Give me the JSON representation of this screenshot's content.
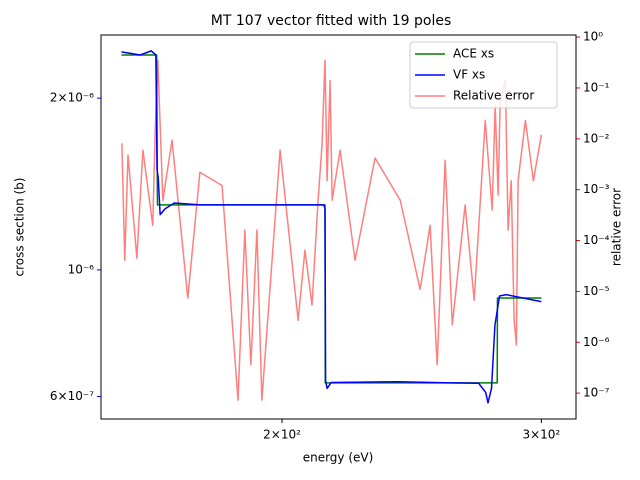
{
  "chart_data": {
    "type": "line",
    "title": "MT 107 vector fitted with 19 poles",
    "xlabel": "energy (eV)",
    "ylabel": "cross section (b)",
    "y2label": "relative error",
    "xscale": "log",
    "yscale": "log",
    "y2scale": "log",
    "y_color": "blue",
    "y2_color": "red",
    "legend": "upper right",
    "xlim": [
      150.7,
      316.7
    ],
    "ylim": [
      5.48e-07,
      2.58e-06
    ],
    "y2lim": [
      3.1e-08,
      1.1
    ],
    "xticks": [
      {
        "value": 200,
        "label": "2×10²"
      },
      {
        "value": 300,
        "label": "3×10²"
      }
    ],
    "yticks": [
      {
        "value": 6e-07,
        "label": "6×10⁻⁷"
      },
      {
        "value": 1e-06,
        "label": "10⁻⁶"
      },
      {
        "value": 2e-06,
        "label": "2×10⁻⁶"
      }
    ],
    "y2ticks": [
      {
        "value": 1e-07,
        "label": "10⁻⁷"
      },
      {
        "value": 1e-06,
        "label": "10⁻⁶"
      },
      {
        "value": 1e-05,
        "label": "10⁻⁵"
      },
      {
        "value": 0.0001,
        "label": "10⁻⁴"
      },
      {
        "value": 0.001,
        "label": "10⁻³"
      },
      {
        "value": 0.01,
        "label": "10⁻²"
      },
      {
        "value": 0.1,
        "label": "10⁻¹"
      },
      {
        "value": 1,
        "label": "10⁰"
      }
    ],
    "series": [
      {
        "name": "ACE xs",
        "color": "green",
        "width": 1.5,
        "x": [
          155.6,
          164.4,
          164.6,
          213.9,
          214.0,
          280.0,
          280.1,
          300.0
        ],
        "values": [
          2.38e-06,
          2.38e-06,
          1.3e-06,
          1.3e-06,
          6.34e-07,
          6.34e-07,
          8.93e-07,
          8.93e-07
        ]
      },
      {
        "name": "VF xs",
        "color": "blue",
        "width": 1.5,
        "x": [
          155.6,
          160.2,
          163.0,
          164.2,
          164.5,
          164.8,
          165.3,
          166.6,
          169.0,
          176.0,
          213.5,
          213.9,
          214.1,
          214.6,
          216.0,
          240.0,
          260.0,
          272.0,
          275.0,
          276.0,
          277.5,
          279.0,
          281.0,
          284.0,
          290.0,
          300.0
        ],
        "values": [
          2.41e-06,
          2.38e-06,
          2.42e-06,
          2.38e-06,
          1.5e-06,
          1.45e-06,
          1.25e-06,
          1.28e-06,
          1.31e-06,
          1.3e-06,
          1.3e-06,
          1.28e-06,
          6.4e-07,
          6.2e-07,
          6.35e-07,
          6.37e-07,
          6.34e-07,
          6.33e-07,
          6.1e-07,
          5.85e-07,
          6.2e-07,
          8e-07,
          9e-07,
          9.05e-07,
          8.95e-07,
          8.8e-07
        ]
      },
      {
        "name": "Relative error",
        "color": "red",
        "opacity": 0.5,
        "width": 1.5,
        "axis": "y2",
        "x": [
          155.7,
          156.4,
          157.2,
          159.4,
          160.9,
          163.4,
          164.0,
          164.7,
          166.0,
          168.4,
          172.6,
          175.9,
          182.1,
          186.7,
          188.7,
          190.5,
          192.3,
          193.8,
          199.4,
          205.1,
          207.3,
          209.6,
          211.6,
          212.9,
          213.9,
          214.6,
          215.6,
          216.3,
          219.0,
          224.2,
          231.3,
          240.6,
          248.2,
          252.1,
          254.9,
          258.1,
          261.0,
          266.3,
          270.1,
          274.8,
          277.8,
          279.1,
          280.4,
          281.3,
          283.6,
          284.8,
          286.2,
          287.5,
          288.5,
          289.3,
          292.6,
          296.3,
          300.0
        ],
        "values": [
          0.0082,
          4.1e-05,
          0.0048,
          4.5e-05,
          0.006,
          0.0002,
          0.012,
          0.35,
          0.00062,
          0.0094,
          7.4e-06,
          0.0022,
          0.0012,
          7.3e-08,
          0.00016,
          3.6e-07,
          0.00016,
          7.3e-08,
          0.006,
          2.7e-06,
          6.5e-05,
          5.4e-06,
          0.00062,
          0.0075,
          0.35,
          0.0015,
          0.14,
          0.00062,
          0.006,
          4.1e-05,
          0.0042,
          0.00062,
          1.1e-05,
          0.0002,
          3.6e-07,
          0.0038,
          2.2e-06,
          0.0005,
          6.7e-06,
          0.023,
          0.0004,
          0.046,
          0.00078,
          0.058,
          0.14,
          0.00016,
          0.0015,
          2.7e-06,
          8.8e-07,
          0.0015,
          0.023,
          0.0015,
          0.012
        ]
      }
    ]
  }
}
